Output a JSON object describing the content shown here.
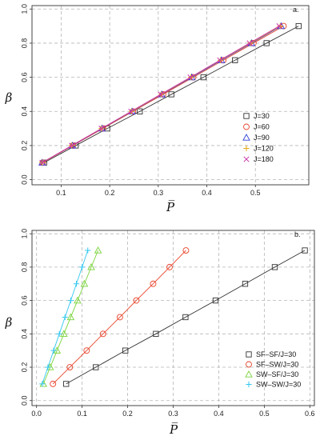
{
  "chart_data": [
    {
      "type": "line",
      "panel_label": "a.",
      "xlabel": "P̅",
      "ylabel": "β",
      "xlim": [
        0.04,
        0.61
      ],
      "ylim": [
        -0.03,
        1.02
      ],
      "xticks": [
        "0.1",
        "0.2",
        "0.3",
        "0.4",
        "0.5"
      ],
      "yticks": [
        "0.0",
        "0.2",
        "0.4",
        "0.6",
        "0.8",
        "1.0"
      ],
      "grid": true,
      "legend_position": "right",
      "series": [
        {
          "name": "J=30",
          "marker": "square",
          "color": "#333333",
          "x": [
            0.065,
            0.13,
            0.195,
            0.262,
            0.327,
            0.393,
            0.458,
            0.523,
            0.589
          ],
          "y": [
            0.1,
            0.2,
            0.3,
            0.4,
            0.5,
            0.6,
            0.7,
            0.8,
            0.9
          ]
        },
        {
          "name": "J=60",
          "marker": "circle",
          "color": "#e8442c",
          "x": [
            0.062,
            0.124,
            0.186,
            0.248,
            0.31,
            0.372,
            0.434,
            0.496,
            0.558
          ],
          "y": [
            0.1,
            0.2,
            0.3,
            0.4,
            0.5,
            0.6,
            0.7,
            0.8,
            0.9
          ]
        },
        {
          "name": "J=90",
          "marker": "triangle",
          "color": "#2c3fd8",
          "x": [
            0.061,
            0.123,
            0.184,
            0.246,
            0.307,
            0.369,
            0.43,
            0.492,
            0.553
          ],
          "y": [
            0.1,
            0.2,
            0.3,
            0.4,
            0.5,
            0.6,
            0.7,
            0.8,
            0.9
          ]
        },
        {
          "name": "J=120",
          "marker": "plus",
          "color": "#e6a817",
          "x": [
            0.061,
            0.122,
            0.183,
            0.245,
            0.306,
            0.367,
            0.428,
            0.49,
            0.551
          ],
          "y": [
            0.1,
            0.2,
            0.3,
            0.4,
            0.5,
            0.6,
            0.7,
            0.8,
            0.9
          ]
        },
        {
          "name": "J=180",
          "marker": "x",
          "color": "#cc33aa",
          "x": [
            0.061,
            0.122,
            0.183,
            0.244,
            0.305,
            0.366,
            0.427,
            0.488,
            0.549
          ],
          "y": [
            0.1,
            0.2,
            0.3,
            0.4,
            0.5,
            0.6,
            0.7,
            0.8,
            0.9
          ]
        }
      ]
    },
    {
      "type": "line",
      "panel_label": "b.",
      "xlabel": "P̅",
      "ylabel": "β",
      "xlim": [
        -0.01,
        0.61
      ],
      "ylim": [
        -0.03,
        1.02
      ],
      "xticks": [
        "0.0",
        "0.1",
        "0.2",
        "0.3",
        "0.4",
        "0.5",
        "0.6"
      ],
      "yticks": [
        "0.0",
        "0.2",
        "0.4",
        "0.6",
        "0.8",
        "1.0"
      ],
      "grid": true,
      "legend_position": "bottom-right",
      "series": [
        {
          "name": "SF–SF/J=30",
          "marker": "square",
          "color": "#333333",
          "x": [
            0.065,
            0.13,
            0.195,
            0.262,
            0.327,
            0.393,
            0.458,
            0.523,
            0.589
          ],
          "y": [
            0.1,
            0.2,
            0.3,
            0.4,
            0.5,
            0.6,
            0.7,
            0.8,
            0.9
          ]
        },
        {
          "name": "SF–SW/J=30",
          "marker": "circle",
          "color": "#e8442c",
          "x": [
            0.036,
            0.073,
            0.11,
            0.146,
            0.183,
            0.219,
            0.256,
            0.292,
            0.328
          ],
          "y": [
            0.1,
            0.2,
            0.3,
            0.4,
            0.5,
            0.6,
            0.7,
            0.8,
            0.9
          ]
        },
        {
          "name": "SW–SF/J=30",
          "marker": "triangle",
          "color": "#7ad43a",
          "x": [
            0.015,
            0.03,
            0.045,
            0.06,
            0.075,
            0.09,
            0.105,
            0.12,
            0.135
          ],
          "y": [
            0.1,
            0.2,
            0.3,
            0.4,
            0.5,
            0.6,
            0.7,
            0.8,
            0.9
          ]
        },
        {
          "name": "SW–SW/J=30",
          "marker": "plus",
          "color": "#33c7f0",
          "x": [
            0.0125,
            0.025,
            0.0375,
            0.05,
            0.0625,
            0.075,
            0.0875,
            0.1,
            0.1125
          ],
          "y": [
            0.1,
            0.2,
            0.3,
            0.4,
            0.5,
            0.6,
            0.7,
            0.8,
            0.9
          ]
        }
      ]
    }
  ]
}
